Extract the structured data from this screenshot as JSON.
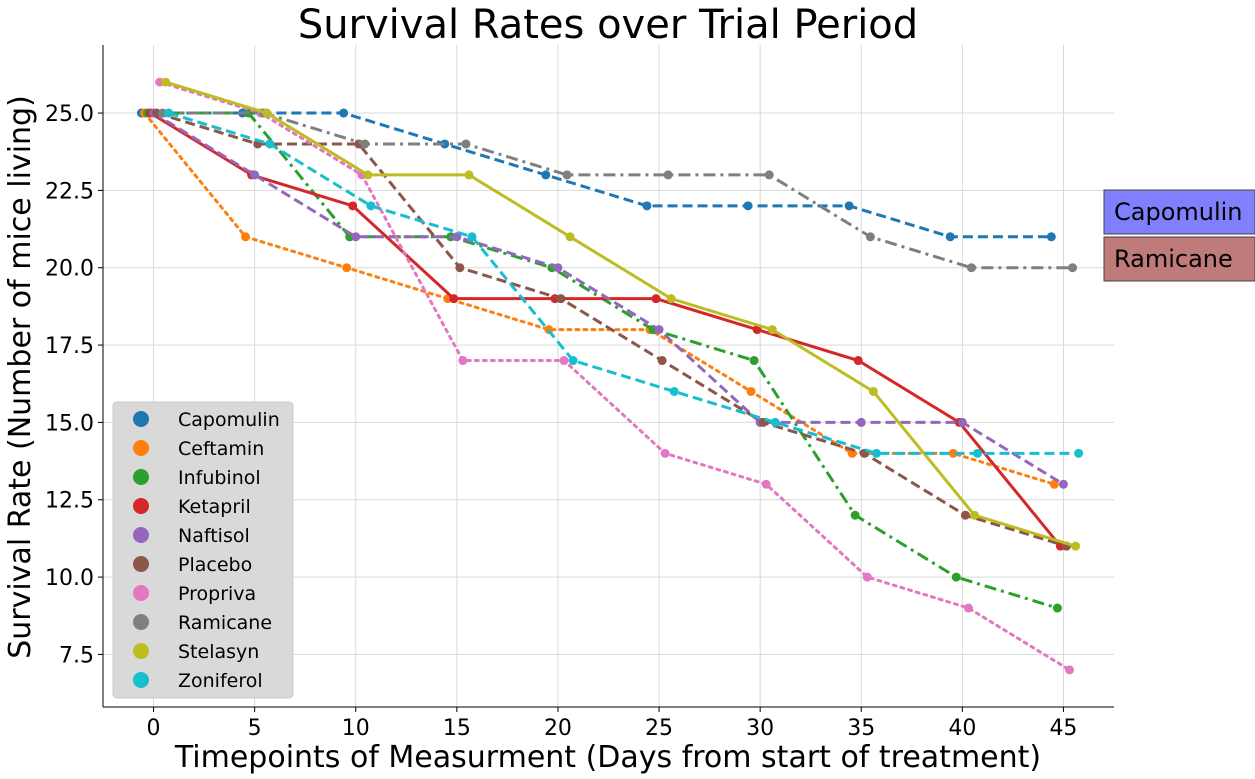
{
  "chart_data": {
    "type": "line",
    "title": "Survival Rates over Trial Period",
    "xlabel": "Timepoints of Measurment (Days from start of treatment)",
    "ylabel": "Survival Rate (Number of mice living)",
    "xlim": [
      -2.5,
      47.5
    ],
    "ylim": [
      5.8,
      27.2
    ],
    "xticks": [
      0,
      5,
      10,
      15,
      20,
      25,
      30,
      35,
      40,
      45
    ],
    "yticks": [
      7.5,
      10.0,
      12.5,
      15.0,
      17.5,
      20.0,
      22.5,
      25.0
    ],
    "ytick_labels": [
      "7.5",
      "10.0",
      "12.5",
      "15.0",
      "17.5",
      "20.0",
      "22.5",
      "25.0"
    ],
    "grid": true,
    "legend_position": "lower-left",
    "series": [
      {
        "name": "Capomulin",
        "color": "#1f77b4",
        "linestyle": "dashed",
        "x": [
          -0.6,
          4.4,
          9.4,
          14.4,
          19.4,
          24.4,
          29.4,
          34.4,
          39.4,
          44.4
        ],
        "values": [
          25,
          25,
          25,
          24,
          23,
          22,
          22,
          22,
          21,
          21
        ]
      },
      {
        "name": "Ceftamin",
        "color": "#ff7f0e",
        "linestyle": "dotted",
        "x": [
          -0.45,
          4.55,
          9.55,
          14.55,
          19.55,
          24.55,
          29.55,
          34.55,
          39.55,
          44.55
        ],
        "values": [
          25,
          21,
          20,
          19,
          18,
          18,
          16,
          14,
          14,
          13
        ]
      },
      {
        "name": "Infubinol",
        "color": "#2ca02c",
        "linestyle": "dashdot",
        "x": [
          -0.3,
          4.7,
          9.7,
          14.7,
          19.7,
          24.7,
          29.7,
          34.7,
          39.7,
          44.7
        ],
        "values": [
          25,
          25,
          21,
          21,
          20,
          18,
          17,
          12,
          10,
          9
        ]
      },
      {
        "name": "Ketapril",
        "color": "#d62728",
        "linestyle": "solid",
        "x": [
          -0.15,
          4.85,
          9.85,
          14.85,
          19.85,
          24.85,
          29.85,
          34.85,
          39.85,
          44.85
        ],
        "values": [
          25,
          23,
          22,
          19,
          19,
          19,
          18,
          17,
          15,
          11
        ]
      },
      {
        "name": "Naftisol",
        "color": "#9467bd",
        "linestyle": "dashed",
        "x": [
          0.0,
          5.0,
          10.0,
          15.0,
          20.0,
          25.0,
          30.0,
          35.0,
          40.0,
          45.0
        ],
        "values": [
          25,
          23,
          21,
          21,
          20,
          18,
          15,
          15,
          15,
          13
        ]
      },
      {
        "name": "Placebo",
        "color": "#8c564b",
        "linestyle": "dashed",
        "x": [
          0.15,
          5.15,
          10.15,
          15.15,
          20.15,
          25.15,
          30.15,
          35.15,
          40.15,
          45.15
        ],
        "values": [
          25,
          24,
          24,
          20,
          19,
          17,
          15,
          14,
          12,
          11
        ]
      },
      {
        "name": "Propriva",
        "color": "#e377c2",
        "linestyle": "dotted",
        "x": [
          0.3,
          5.3,
          10.3,
          15.3,
          20.3,
          25.3,
          30.3,
          35.3,
          40.3,
          45.3
        ],
        "values": [
          26,
          25,
          23,
          17,
          17,
          14,
          13,
          10,
          9,
          7
        ]
      },
      {
        "name": "Ramicane",
        "color": "#7f7f7f",
        "linestyle": "dashdot",
        "x": [
          0.45,
          5.45,
          10.45,
          15.45,
          20.45,
          25.45,
          30.45,
          35.45,
          40.45,
          45.45
        ],
        "values": [
          25,
          25,
          24,
          24,
          23,
          23,
          23,
          21,
          20,
          20
        ]
      },
      {
        "name": "Stelasyn",
        "color": "#bcbd22",
        "linestyle": "solid",
        "x": [
          0.6,
          5.6,
          10.6,
          15.6,
          20.6,
          25.6,
          30.6,
          35.6,
          40.6,
          45.6
        ],
        "values": [
          26,
          25,
          23,
          23,
          21,
          19,
          18,
          16,
          12,
          11
        ]
      },
      {
        "name": "Zoniferol",
        "color": "#17becf",
        "linestyle": "dashed",
        "x": [
          0.75,
          5.75,
          10.75,
          15.75,
          20.75,
          25.75,
          30.75,
          35.75,
          40.75,
          45.75
        ],
        "values": [
          25,
          24,
          22,
          21,
          17,
          16,
          15,
          14,
          14,
          14
        ]
      }
    ],
    "annotations": [
      {
        "text": "Capomulin",
        "background": "#8080ff",
        "near_y": 21.6
      },
      {
        "text": "Ramicane",
        "background": "#bf7a7a",
        "near_y": 20.3
      }
    ]
  }
}
